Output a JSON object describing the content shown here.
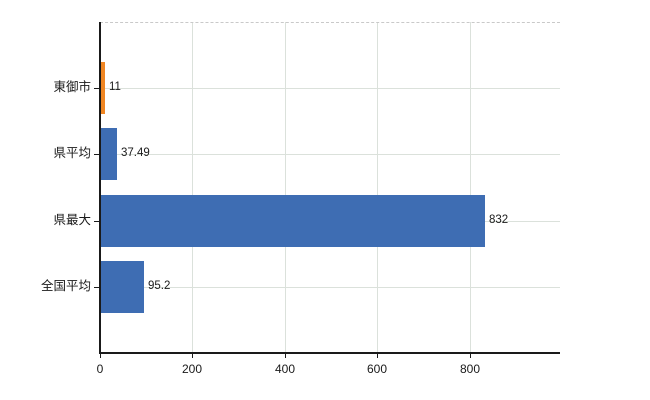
{
  "chart_data": {
    "type": "bar",
    "orientation": "horizontal",
    "title": "",
    "xlabel": "",
    "ylabel": "",
    "categories": [
      "東御市",
      "県平均",
      "県最大",
      "全国平均"
    ],
    "values": [
      11,
      37.49,
      832,
      95.2
    ],
    "value_labels": [
      "11",
      "37.49",
      "832",
      "95.2"
    ],
    "bar_colors": [
      "#f08623",
      "#3e6db3",
      "#3e6db3",
      "#3e6db3"
    ],
    "x_ticks": [
      0,
      200,
      400,
      600,
      800
    ],
    "x_tick_labels": [
      "0",
      "200",
      "400",
      "600",
      "800"
    ],
    "xlim": [
      0,
      995
    ],
    "grid": true,
    "legend": "none"
  },
  "colors": {
    "bar_blue": "#3e6db3",
    "bar_orange": "#f08623",
    "gridline": "#dbe1db",
    "axis": "#1a1a1a",
    "top_border": "#c9c9c9",
    "background": "#ffffff",
    "text": "#1a1a1a"
  }
}
